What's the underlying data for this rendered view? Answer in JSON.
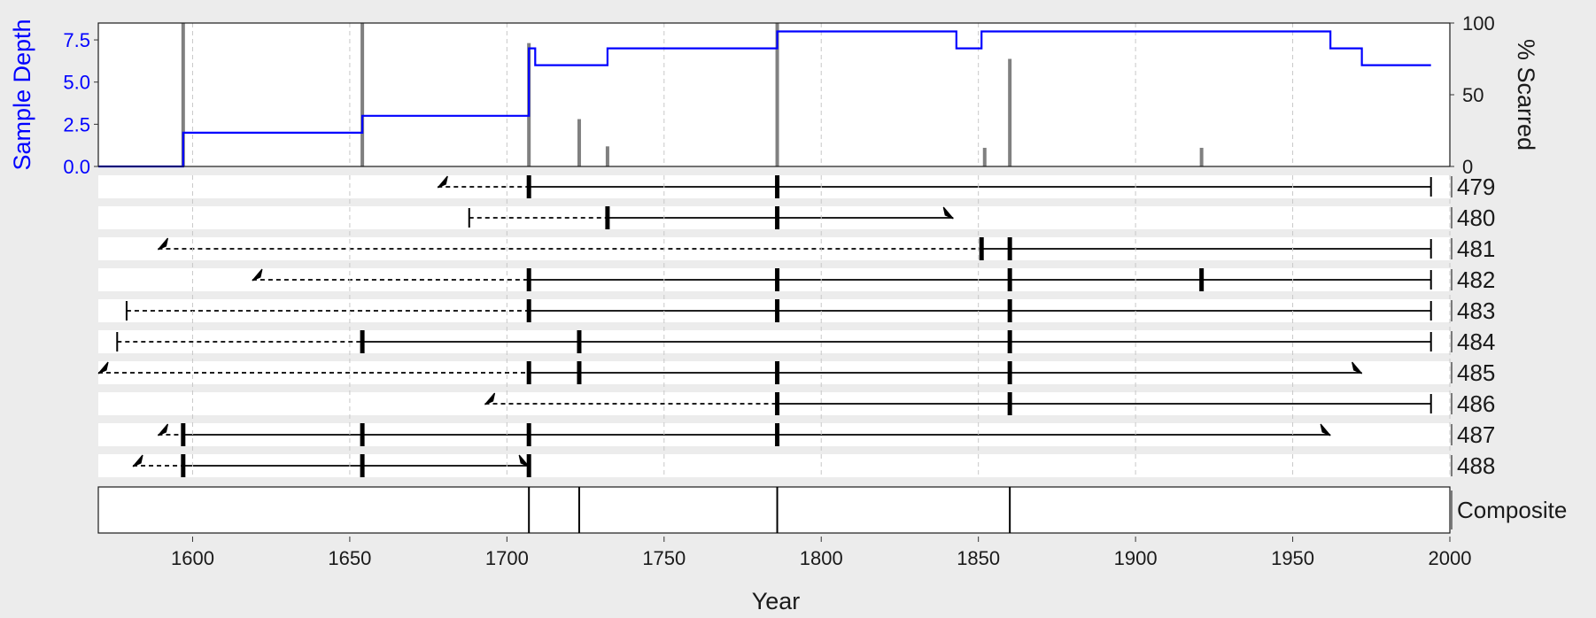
{
  "chart_data": {
    "type": "fire-history",
    "xlabel": "Year",
    "xlim": [
      1570,
      2000
    ],
    "x_ticks": [
      1600,
      1650,
      1700,
      1750,
      1800,
      1850,
      1900,
      1950,
      2000
    ],
    "grid": "vertical dashed",
    "sample_depth": {
      "ylabel": "Sample Depth",
      "color": "#0000ff",
      "ylim": [
        0,
        8.5
      ],
      "y_ticks": [
        "0.0",
        "2.5",
        "5.0",
        "7.5"
      ],
      "steps": [
        {
          "year": 1570,
          "depth": 0
        },
        {
          "year": 1597,
          "depth": 2
        },
        {
          "year": 1654,
          "depth": 3
        },
        {
          "year": 1707,
          "depth": 7
        },
        {
          "year": 1709,
          "depth": 6
        },
        {
          "year": 1732,
          "depth": 7
        },
        {
          "year": 1786,
          "depth": 8
        },
        {
          "year": 1843,
          "depth": 7
        },
        {
          "year": 1851,
          "depth": 8
        },
        {
          "year": 1962,
          "depth": 7
        },
        {
          "year": 1972,
          "depth": 6
        },
        {
          "year": 1994,
          "depth": 6
        }
      ]
    },
    "percent_scarred": {
      "ylabel": "% Scarred",
      "ylim": [
        0,
        100
      ],
      "y_ticks": [
        "0",
        "50",
        "100"
      ],
      "color": "#808080",
      "bars": [
        {
          "year": 1597,
          "value": 100
        },
        {
          "year": 1654,
          "value": 100
        },
        {
          "year": 1707,
          "value": 86
        },
        {
          "year": 1723,
          "value": 33
        },
        {
          "year": 1732,
          "value": 14
        },
        {
          "year": 1786,
          "value": 100
        },
        {
          "year": 1852,
          "value": 13
        },
        {
          "year": 1860,
          "value": 75
        },
        {
          "year": 1921,
          "value": 13
        }
      ]
    },
    "series": [
      {
        "name": "479",
        "start": 1678,
        "start_type": "pith",
        "record_start": 1707,
        "end": 1994,
        "end_type": "bark",
        "scars": [
          1707,
          1786
        ]
      },
      {
        "name": "480",
        "start": 1688,
        "start_type": "bark",
        "record_start": 1732,
        "end": 1842,
        "end_type": "inner",
        "scars": [
          1732,
          1786
        ]
      },
      {
        "name": "481",
        "start": 1589,
        "start_type": "pith",
        "record_start": 1851,
        "end": 1994,
        "end_type": "bark",
        "scars": [
          1851,
          1860
        ]
      },
      {
        "name": "482",
        "start": 1619,
        "start_type": "pith",
        "record_start": 1707,
        "end": 1994,
        "end_type": "bark",
        "scars": [
          1707,
          1786,
          1860,
          1921
        ]
      },
      {
        "name": "483",
        "start": 1579,
        "start_type": "bark",
        "record_start": 1707,
        "end": 1994,
        "end_type": "bark",
        "scars": [
          1707,
          1786,
          1860
        ]
      },
      {
        "name": "484",
        "start": 1576,
        "start_type": "bark",
        "record_start": 1654,
        "end": 1994,
        "end_type": "bark",
        "scars": [
          1654,
          1723,
          1860
        ]
      },
      {
        "name": "485",
        "start": 1570,
        "start_type": "pith",
        "record_start": 1707,
        "end": 1972,
        "end_type": "inner",
        "scars": [
          1707,
          1723,
          1786,
          1860
        ]
      },
      {
        "name": "486",
        "start": 1693,
        "start_type": "pith",
        "record_start": 1786,
        "end": 1994,
        "end_type": "bark",
        "scars": [
          1786,
          1860
        ]
      },
      {
        "name": "487",
        "start": 1589,
        "start_type": "pith",
        "record_start": 1597,
        "end": 1962,
        "end_type": "inner",
        "scars": [
          1597,
          1654,
          1707,
          1786
        ]
      },
      {
        "name": "488",
        "start": 1581,
        "start_type": "pith",
        "record_start": 1597,
        "end": 1707,
        "end_type": "inner",
        "scars": [
          1597,
          1654,
          1707
        ]
      }
    ],
    "composite": {
      "label": "Composite",
      "events": [
        1707,
        1723,
        1786,
        1860
      ]
    }
  }
}
